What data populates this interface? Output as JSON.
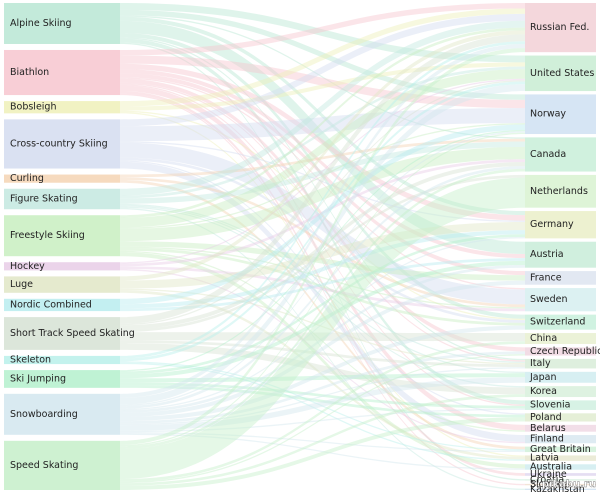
{
  "chart_data": {
    "type": "sankey",
    "sources": [
      "Alpine Skiing",
      "Biathlon",
      "Bobsleigh",
      "Cross-country Skiing",
      "Curling",
      "Figure Skating",
      "Freestyle Skiing",
      "Hockey",
      "Luge",
      "Nordic Combined",
      "Short Track Speed Skating",
      "Skeleton",
      "Ski Jumping",
      "Snowboarding",
      "Speed Skating"
    ],
    "source_colors": [
      "#b9e6d3",
      "#f7c6cf",
      "#eef0b8",
      "#d3dcf0",
      "#f5d3b3",
      "#c3e8df",
      "#c8eec0",
      "#e8cde6",
      "#e1e6c5",
      "#b8ecef",
      "#d6e2d3",
      "#b8f0ea",
      "#b4f0cc",
      "#d2e6ee",
      "#c5efc9"
    ],
    "targets": [
      "Russian Fed.",
      "United States",
      "Norway",
      "Canada",
      "Netherlands",
      "Germany",
      "Austria",
      "France",
      "Sweden",
      "Switzerland",
      "China",
      "Czech Republic",
      "Italy",
      "Japan",
      "Korea",
      "Slovenia",
      "Poland",
      "Belarus",
      "Finland",
      "Great Britain",
      "Latvia",
      "Australia",
      "Ukraine",
      "Croatia",
      "Slovakia",
      "Kazakhstan"
    ],
    "target_colors": [
      "#f2d0d6",
      "#c8ecd2",
      "#cfe0f2",
      "#c8eed8",
      "#d8f2d0",
      "#eaeec8",
      "#c8ecd8",
      "#dde4f0",
      "#d6eef0",
      "#c8f0dc",
      "#e8f0d0",
      "#f0d6e0",
      "#d8ecd8",
      "#d0ecf0",
      "#d8f0dc",
      "#d0f0e0",
      "#e0ecd0",
      "#f0d8e4",
      "#d8e8f0",
      "#d0f0d8",
      "#e8e8d0",
      "#d0ecf0",
      "#e0d8f0",
      "#d8f0e0",
      "#f0e0d0",
      "#d0e0f0"
    ],
    "links": [
      {
        "source": 0,
        "target": 6,
        "value": 9
      },
      {
        "source": 0,
        "target": 1,
        "value": 5
      },
      {
        "source": 0,
        "target": 15,
        "value": 3
      },
      {
        "source": 0,
        "target": 2,
        "value": 4
      },
      {
        "source": 0,
        "target": 9,
        "value": 3
      },
      {
        "source": 0,
        "target": 5,
        "value": 3
      },
      {
        "source": 0,
        "target": 3,
        "value": 1
      },
      {
        "source": 0,
        "target": 23,
        "value": 1
      },
      {
        "source": 0,
        "target": 12,
        "value": 1
      },
      {
        "source": 1,
        "target": 2,
        "value": 6
      },
      {
        "source": 1,
        "target": 0,
        "value": 4
      },
      {
        "source": 1,
        "target": 5,
        "value": 4
      },
      {
        "source": 1,
        "target": 7,
        "value": 3
      },
      {
        "source": 1,
        "target": 17,
        "value": 4
      },
      {
        "source": 1,
        "target": 22,
        "value": 2
      },
      {
        "source": 1,
        "target": 15,
        "value": 1
      },
      {
        "source": 1,
        "target": 6,
        "value": 3
      },
      {
        "source": 1,
        "target": 11,
        "value": 3
      },
      {
        "source": 1,
        "target": 24,
        "value": 1
      },
      {
        "source": 1,
        "target": 12,
        "value": 1
      },
      {
        "source": 1,
        "target": 8,
        "value": 1
      },
      {
        "source": 2,
        "target": 0,
        "value": 4
      },
      {
        "source": 2,
        "target": 1,
        "value": 3
      },
      {
        "source": 2,
        "target": 9,
        "value": 1
      },
      {
        "source": 2,
        "target": 20,
        "value": 1
      },
      {
        "source": 3,
        "target": 2,
        "value": 11
      },
      {
        "source": 3,
        "target": 8,
        "value": 11
      },
      {
        "source": 3,
        "target": 0,
        "value": 5
      },
      {
        "source": 3,
        "target": 18,
        "value": 5
      },
      {
        "source": 3,
        "target": 9,
        "value": 2
      },
      {
        "source": 3,
        "target": 16,
        "value": 1
      },
      {
        "source": 3,
        "target": 5,
        "value": 1
      },
      {
        "source": 4,
        "target": 3,
        "value": 2
      },
      {
        "source": 4,
        "target": 19,
        "value": 2
      },
      {
        "source": 4,
        "target": 8,
        "value": 2
      },
      {
        "source": 5,
        "target": 0,
        "value": 5
      },
      {
        "source": 5,
        "target": 3,
        "value": 4
      },
      {
        "source": 5,
        "target": 1,
        "value": 2
      },
      {
        "source": 5,
        "target": 13,
        "value": 1
      },
      {
        "source": 5,
        "target": 12,
        "value": 1
      },
      {
        "source": 5,
        "target": 14,
        "value": 1
      },
      {
        "source": 5,
        "target": 25,
        "value": 1
      },
      {
        "source": 6,
        "target": 3,
        "value": 9
      },
      {
        "source": 6,
        "target": 1,
        "value": 7
      },
      {
        "source": 6,
        "target": 7,
        "value": 4
      },
      {
        "source": 6,
        "target": 0,
        "value": 2
      },
      {
        "source": 6,
        "target": 9,
        "value": 2
      },
      {
        "source": 6,
        "target": 21,
        "value": 3
      },
      {
        "source": 6,
        "target": 2,
        "value": 1
      },
      {
        "source": 6,
        "target": 8,
        "value": 1
      },
      {
        "source": 6,
        "target": 17,
        "value": 1
      },
      {
        "source": 7,
        "target": 3,
        "value": 2
      },
      {
        "source": 7,
        "target": 8,
        "value": 2
      },
      {
        "source": 7,
        "target": 18,
        "value": 1
      },
      {
        "source": 7,
        "target": 1,
        "value": 1
      },
      {
        "source": 8,
        "target": 5,
        "value": 6
      },
      {
        "source": 8,
        "target": 0,
        "value": 3
      },
      {
        "source": 8,
        "target": 20,
        "value": 2
      },
      {
        "source": 8,
        "target": 12,
        "value": 1
      },
      {
        "source": 9,
        "target": 5,
        "value": 3
      },
      {
        "source": 9,
        "target": 2,
        "value": 4
      },
      {
        "source": 9,
        "target": 6,
        "value": 2
      },
      {
        "source": 10,
        "target": 10,
        "value": 6
      },
      {
        "source": 10,
        "target": 14,
        "value": 5
      },
      {
        "source": 10,
        "target": 0,
        "value": 5
      },
      {
        "source": 10,
        "target": 3,
        "value": 3
      },
      {
        "source": 10,
        "target": 4,
        "value": 2
      },
      {
        "source": 10,
        "target": 12,
        "value": 2
      },
      {
        "source": 10,
        "target": 1,
        "value": 1
      },
      {
        "source": 11,
        "target": 0,
        "value": 2
      },
      {
        "source": 11,
        "target": 19,
        "value": 1
      },
      {
        "source": 11,
        "target": 1,
        "value": 2
      },
      {
        "source": 11,
        "target": 20,
        "value": 1
      },
      {
        "source": 12,
        "target": 5,
        "value": 2
      },
      {
        "source": 12,
        "target": 13,
        "value": 3
      },
      {
        "source": 12,
        "target": 16,
        "value": 2
      },
      {
        "source": 12,
        "target": 6,
        "value": 3
      },
      {
        "source": 12,
        "target": 15,
        "value": 2
      },
      {
        "source": 12,
        "target": 2,
        "value": 1
      },
      {
        "source": 13,
        "target": 1,
        "value": 5
      },
      {
        "source": 13,
        "target": 9,
        "value": 3
      },
      {
        "source": 13,
        "target": 0,
        "value": 3
      },
      {
        "source": 13,
        "target": 7,
        "value": 3
      },
      {
        "source": 13,
        "target": 6,
        "value": 2
      },
      {
        "source": 13,
        "target": 3,
        "value": 2
      },
      {
        "source": 13,
        "target": 15,
        "value": 1
      },
      {
        "source": 13,
        "target": 13,
        "value": 4
      },
      {
        "source": 13,
        "target": 11,
        "value": 2
      },
      {
        "source": 13,
        "target": 5,
        "value": 1
      },
      {
        "source": 13,
        "target": 2,
        "value": 1
      },
      {
        "source": 13,
        "target": 12,
        "value": 1
      },
      {
        "source": 13,
        "target": 21,
        "value": 1
      },
      {
        "source": 13,
        "target": 19,
        "value": 1
      },
      {
        "source": 14,
        "target": 4,
        "value": 22
      },
      {
        "source": 14,
        "target": 16,
        "value": 3
      },
      {
        "source": 14,
        "target": 11,
        "value": 1
      },
      {
        "source": 14,
        "target": 3,
        "value": 2
      },
      {
        "source": 14,
        "target": 10,
        "value": 2
      },
      {
        "source": 14,
        "target": 0,
        "value": 3
      },
      {
        "source": 14,
        "target": 14,
        "value": 2
      },
      {
        "source": 14,
        "target": 2,
        "value": 1
      }
    ],
    "watermark": "pikabu.ru"
  }
}
